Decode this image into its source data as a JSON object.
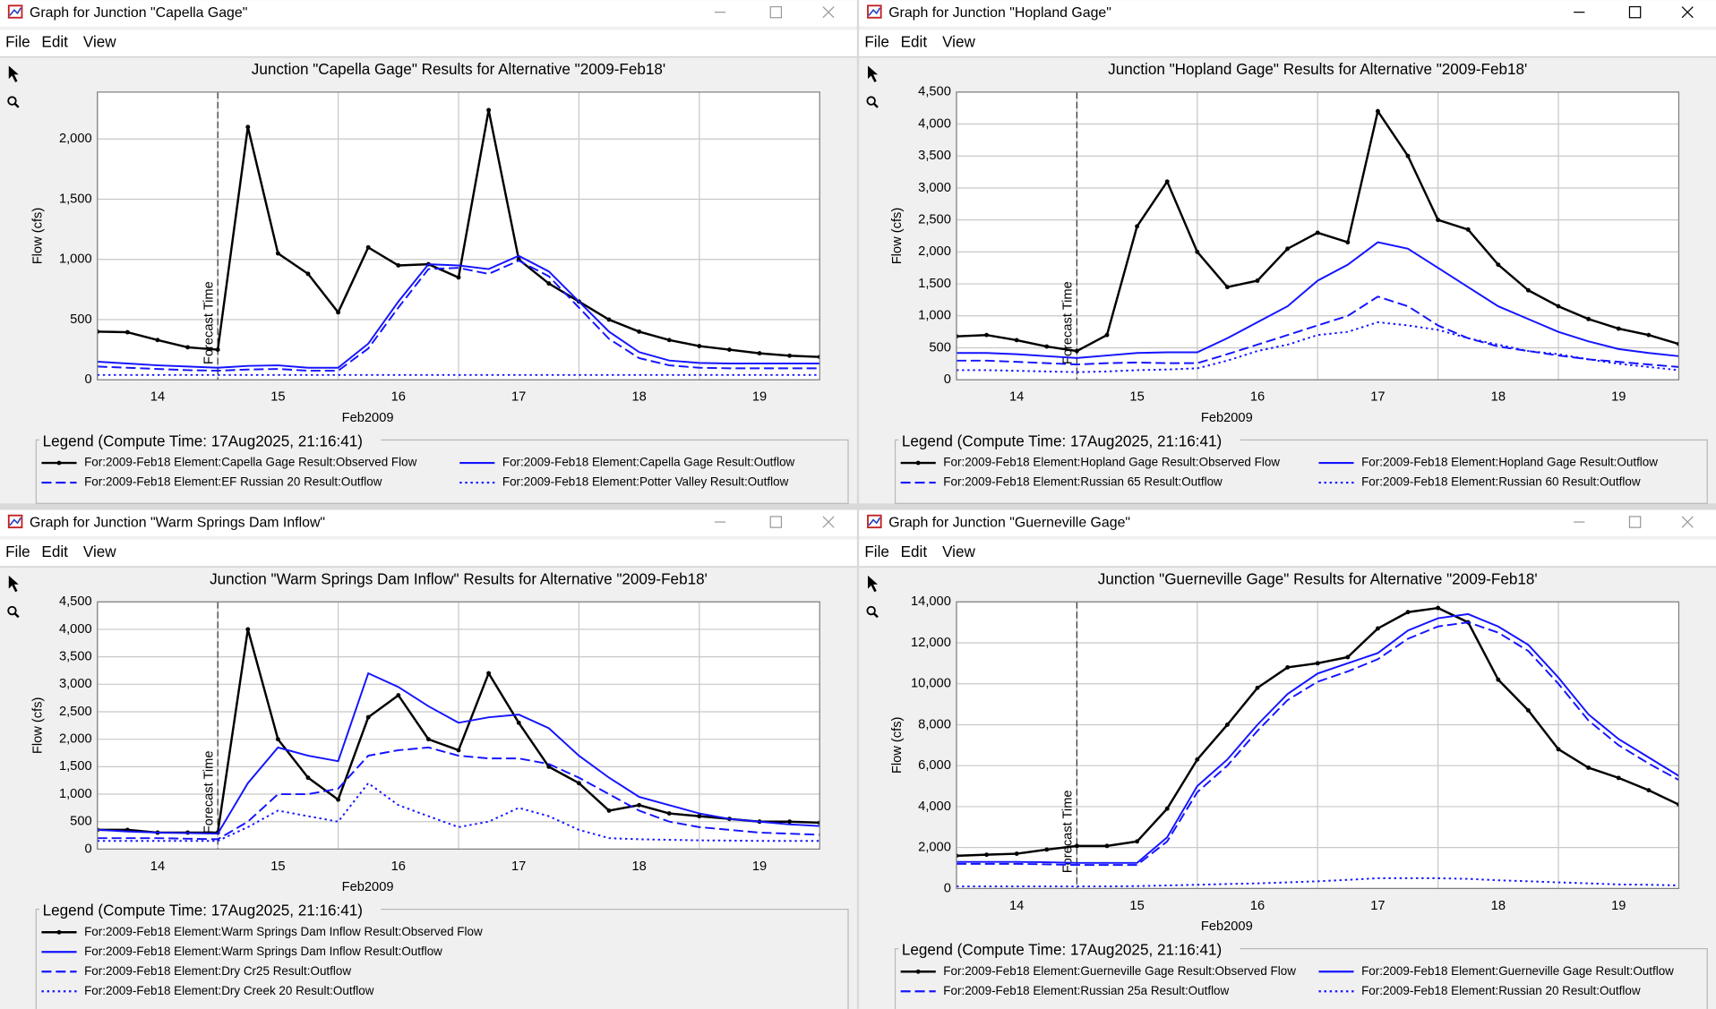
{
  "windows": [
    {
      "title": "Graph for Junction \"Capella Gage\"",
      "menu": [
        "File",
        "Edit",
        "View"
      ],
      "chart_data": {
        "type": "line",
        "title": "Junction \"Capella Gage\" Results for Alternative \"2009-Feb18'",
        "xlabel": "Feb2009",
        "ylabel": "Flow (cfs)",
        "xlim": [
          13.5,
          19.5
        ],
        "xticks": [
          14,
          15,
          16,
          17,
          18,
          19
        ],
        "ylim": [
          0,
          2390
        ],
        "yticks": [
          0,
          500,
          {
            "value": 1000,
            "label": "1,000"
          },
          {
            "value": 1500,
            "label": "1,500"
          },
          {
            "value": 2000,
            "label": "2,000"
          }
        ],
        "grid": true,
        "forecast": {
          "label": "Forecast Time",
          "x": 14.5
        },
        "legend_title": "Legend (Compute Time: 17Aug2025, 21:16:41)",
        "x": [
          13.5,
          13.75,
          14,
          14.25,
          14.5,
          14.75,
          15,
          15.25,
          15.5,
          15.75,
          16,
          16.25,
          16.5,
          16.75,
          17,
          17.25,
          17.5,
          17.75,
          18,
          18.25,
          18.5,
          18.75,
          19,
          19.25,
          19.5
        ],
        "series": [
          {
            "name": "For:2009-Feb18 Element:Capella Gage Result:Observed Flow",
            "color": "#000000",
            "dash": "solid",
            "markers": true,
            "values": [
              400,
              395,
              330,
              270,
              250,
              2100,
              1050,
              880,
              560,
              1100,
              950,
              960,
              850,
              2240,
              1000,
              800,
              650,
              500,
              400,
              330,
              280,
              250,
              220,
              200,
              190
            ]
          },
          {
            "name": "For:2009-Feb18 Element:Capella Gage Result:Outflow",
            "color": "#1414ff",
            "dash": "solid",
            "markers": false,
            "values": [
              150,
              135,
              120,
              110,
              100,
              115,
              120,
              100,
              100,
              300,
              650,
              960,
              950,
              920,
              1030,
              900,
              650,
              400,
              230,
              160,
              140,
              135,
              135,
              135,
              135
            ]
          },
          {
            "name": "For:2009-Feb18 Element:EF Russian 20 Result:Outflow",
            "color": "#1414ff",
            "dash": "dashed",
            "markers": false,
            "values": [
              110,
              100,
              90,
              80,
              75,
              85,
              90,
              75,
              75,
              260,
              600,
              920,
              930,
              880,
              990,
              860,
              600,
              340,
              180,
              120,
              100,
              95,
              95,
              95,
              95
            ]
          },
          {
            "name": "For:2009-Feb18 Element:Potter Valley Result:Outflow",
            "color": "#1414ff",
            "dash": "dotted",
            "markers": false,
            "values": [
              40,
              40,
              40,
              40,
              40,
              40,
              40,
              40,
              40,
              40,
              40,
              40,
              40,
              40,
              40,
              40,
              40,
              40,
              40,
              40,
              40,
              40,
              40,
              40,
              40
            ]
          }
        ]
      }
    },
    {
      "title": "Graph for Junction \"Hopland Gage\"",
      "menu": [
        "File",
        "Edit",
        "View"
      ],
      "chart_data": {
        "type": "line",
        "title": "Junction \"Hopland Gage\" Results for Alternative \"2009-Feb18'",
        "xlabel": "Feb2009",
        "ylabel": "Flow (cfs)",
        "xlim": [
          13.5,
          19.5
        ],
        "xticks": [
          14,
          15,
          16,
          17,
          18,
          19
        ],
        "ylim": [
          0,
          4500
        ],
        "yticks": [
          0,
          500,
          {
            "value": 1000,
            "label": "1,000"
          },
          {
            "value": 1500,
            "label": "1,500"
          },
          {
            "value": 2000,
            "label": "2,000"
          },
          {
            "value": 2500,
            "label": "2,500"
          },
          {
            "value": 3000,
            "label": "3,000"
          },
          {
            "value": 3500,
            "label": "3,500"
          },
          {
            "value": 4000,
            "label": "4,000"
          },
          {
            "value": 4500,
            "label": "4,500"
          }
        ],
        "grid": true,
        "forecast": {
          "label": "Forecast Time",
          "x": 14.5
        },
        "legend_title": "Legend (Compute Time: 17Aug2025, 21:16:41)",
        "x": [
          13.5,
          13.75,
          14,
          14.25,
          14.5,
          14.75,
          15,
          15.25,
          15.5,
          15.75,
          16,
          16.25,
          16.5,
          16.75,
          17,
          17.25,
          17.5,
          17.75,
          18,
          18.25,
          18.5,
          18.75,
          19,
          19.25,
          19.5
        ],
        "series": [
          {
            "name": "For:2009-Feb18 Element:Hopland Gage Result:Observed Flow",
            "color": "#000000",
            "dash": "solid",
            "markers": true,
            "values": [
              680,
              700,
              620,
              520,
              450,
              700,
              2400,
              3100,
              2000,
              1450,
              1550,
              2050,
              2300,
              2150,
              4200,
              3500,
              2500,
              2350,
              1800,
              1400,
              1150,
              950,
              800,
              700,
              560
            ]
          },
          {
            "name": "For:2009-Feb18 Element:Hopland Gage Result:Outflow",
            "color": "#1414ff",
            "dash": "solid",
            "markers": false,
            "values": [
              420,
              420,
              400,
              370,
              340,
              380,
              420,
              430,
              430,
              650,
              900,
              1150,
              1550,
              1800,
              2150,
              2050,
              1750,
              1450,
              1150,
              950,
              750,
              600,
              480,
              420,
              370
            ]
          },
          {
            "name": "For:2009-Feb18 Element:Russian 65 Result:Outflow",
            "color": "#1414ff",
            "dash": "dashed",
            "markers": false,
            "values": [
              300,
              300,
              280,
              260,
              240,
              260,
              270,
              260,
              260,
              400,
              550,
              700,
              850,
              1000,
              1300,
              1150,
              850,
              650,
              520,
              450,
              380,
              320,
              280,
              240,
              200
            ]
          },
          {
            "name": "For:2009-Feb18 Element:Russian 60 Result:Outflow",
            "color": "#1414ff",
            "dash": "dotted",
            "markers": false,
            "values": [
              150,
              150,
              140,
              130,
              120,
              130,
              150,
              160,
              180,
              300,
              450,
              550,
              700,
              750,
              900,
              850,
              780,
              650,
              550,
              450,
              400,
              320,
              250,
              200,
              150
            ]
          }
        ]
      }
    },
    {
      "title": "Graph for Junction \"Warm Springs Dam Inflow\"",
      "menu": [
        "File",
        "Edit",
        "View"
      ],
      "chart_data": {
        "type": "line",
        "title": "Junction \"Warm Springs Dam Inflow\" Results for Alternative \"2009-Feb18'",
        "xlabel": "Feb2009",
        "ylabel": "Flow (cfs)",
        "xlim": [
          13.5,
          19.5
        ],
        "xticks": [
          14,
          15,
          16,
          17,
          18,
          19
        ],
        "ylim": [
          0,
          4500
        ],
        "yticks": [
          0,
          500,
          {
            "value": 1000,
            "label": "1,000"
          },
          {
            "value": 1500,
            "label": "1,500"
          },
          {
            "value": 2000,
            "label": "2,000"
          },
          {
            "value": 2500,
            "label": "2,500"
          },
          {
            "value": 3000,
            "label": "3,000"
          },
          {
            "value": 3500,
            "label": "3,500"
          },
          {
            "value": 4000,
            "label": "4,000"
          },
          {
            "value": 4500,
            "label": "4,500"
          }
        ],
        "grid": true,
        "forecast": {
          "label": "Forecast Time",
          "x": 14.5
        },
        "legend_title": "Legend (Compute Time: 17Aug2025, 21:16:41)",
        "x": [
          13.5,
          13.75,
          14,
          14.25,
          14.5,
          14.75,
          15,
          15.25,
          15.5,
          15.75,
          16,
          16.25,
          16.5,
          16.75,
          17,
          17.25,
          17.5,
          17.75,
          18,
          18.25,
          18.5,
          18.75,
          19,
          19.25,
          19.5
        ],
        "series": [
          {
            "name": "For:2009-Feb18 Element:Warm Springs Dam Inflow Result:Observed Flow",
            "color": "#000000",
            "dash": "solid",
            "markers": true,
            "values": [
              350,
              350,
              300,
              300,
              300,
              4000,
              2000,
              1300,
              900,
              2400,
              2800,
              2000,
              1800,
              3200,
              2300,
              1500,
              1200,
              700,
              800,
              650,
              600,
              550,
              500,
              500,
              480
            ]
          },
          {
            "name": "For:2009-Feb18 Element:Warm Springs Dam Inflow Result:Outflow",
            "color": "#1414ff",
            "dash": "solid",
            "markers": false,
            "values": [
              350,
              320,
              300,
              290,
              280,
              1200,
              1850,
              1700,
              1600,
              3200,
              2950,
              2600,
              2300,
              2400,
              2450,
              2200,
              1700,
              1300,
              950,
              800,
              650,
              550,
              500,
              450,
              420
            ]
          },
          {
            "name": "For:2009-Feb18 Element:Dry Cr25 Result:Outflow",
            "color": "#1414ff",
            "dash": "dashed",
            "markers": false,
            "values": [
              200,
              200,
              200,
              190,
              180,
              500,
              1000,
              1000,
              1100,
              1700,
              1800,
              1850,
              1700,
              1650,
              1650,
              1550,
              1300,
              1000,
              700,
              500,
              400,
              350,
              300,
              280,
              260
            ]
          },
          {
            "name": "For:2009-Feb18 Element:Dry Creek 20 Result:Outflow",
            "color": "#1414ff",
            "dash": "dotted",
            "markers": false,
            "values": [
              150,
              150,
              150,
              150,
              150,
              400,
              700,
              600,
              500,
              1200,
              800,
              600,
              400,
              500,
              750,
              600,
              350,
              200,
              180,
              170,
              160,
              155,
              150,
              150,
              150
            ]
          }
        ]
      }
    },
    {
      "title": "Graph for Junction \"Guerneville Gage\"",
      "menu": [
        "File",
        "Edit",
        "View"
      ],
      "chart_data": {
        "type": "line",
        "title": "Junction \"Guerneville Gage\" Results for Alternative \"2009-Feb18'",
        "xlabel": "Feb2009",
        "ylabel": "Flow (cfs)",
        "xlim": [
          13.5,
          19.5
        ],
        "xticks": [
          14,
          15,
          16,
          17,
          18,
          19
        ],
        "ylim": [
          0,
          14000
        ],
        "yticks": [
          0,
          {
            "value": 2000,
            "label": "2,000"
          },
          {
            "value": 4000,
            "label": "4,000"
          },
          {
            "value": 6000,
            "label": "6,000"
          },
          {
            "value": 8000,
            "label": "8,000"
          },
          {
            "value": 10000,
            "label": "10,000"
          },
          {
            "value": 12000,
            "label": "12,000"
          },
          {
            "value": 14000,
            "label": "14,000"
          }
        ],
        "grid": true,
        "forecast": {
          "label": "Forecast Time",
          "x": 14.5
        },
        "legend_title": "Legend (Compute Time: 17Aug2025, 21:16:41)",
        "x": [
          13.5,
          13.75,
          14,
          14.25,
          14.5,
          14.75,
          15,
          15.25,
          15.5,
          15.75,
          16,
          16.25,
          16.5,
          16.75,
          17,
          17.25,
          17.5,
          17.75,
          18,
          18.25,
          18.5,
          18.75,
          19,
          19.25,
          19.5
        ],
        "series": [
          {
            "name": "For:2009-Feb18 Element:Guerneville Gage Result:Observed Flow",
            "color": "#000000",
            "dash": "solid",
            "markers": true,
            "values": [
              1600,
              1650,
              1700,
              1900,
              2080,
              2080,
              2300,
              3900,
              6300,
              8000,
              9800,
              10800,
              11000,
              11300,
              12700,
              13500,
              13700,
              13000,
              10200,
              8700,
              6800,
              5900,
              5400,
              4800,
              4100
            ]
          },
          {
            "name": "For:2009-Feb18 Element:Guerneville Gage Result:Outflow",
            "color": "#1414ff",
            "dash": "solid",
            "markers": false,
            "values": [
              1300,
              1300,
              1300,
              1280,
              1250,
              1250,
              1250,
              2500,
              5000,
              6300,
              8000,
              9500,
              10500,
              11000,
              11500,
              12600,
              13200,
              13400,
              12800,
              11900,
              10300,
              8500,
              7300,
              6400,
              5500
            ]
          },
          {
            "name": "For:2009-Feb18 Element:Russian 25a Result:Outflow",
            "color": "#1414ff",
            "dash": "dashed",
            "markers": false,
            "values": [
              1200,
              1200,
              1200,
              1180,
              1150,
              1150,
              1150,
              2300,
              4700,
              6000,
              7700,
              9200,
              10100,
              10600,
              11200,
              12200,
              12800,
              13000,
              12500,
              11600,
              10000,
              8200,
              7000,
              6100,
              5300
            ]
          },
          {
            "name": "For:2009-Feb18 Element:Russian 20 Result:Outflow",
            "color": "#1414ff",
            "dash": "dotted",
            "markers": false,
            "values": [
              100,
              100,
              100,
              100,
              100,
              100,
              120,
              150,
              180,
              220,
              250,
              300,
              350,
              420,
              500,
              500,
              500,
              470,
              400,
              350,
              300,
              250,
              200,
              180,
              150
            ]
          }
        ]
      }
    }
  ]
}
